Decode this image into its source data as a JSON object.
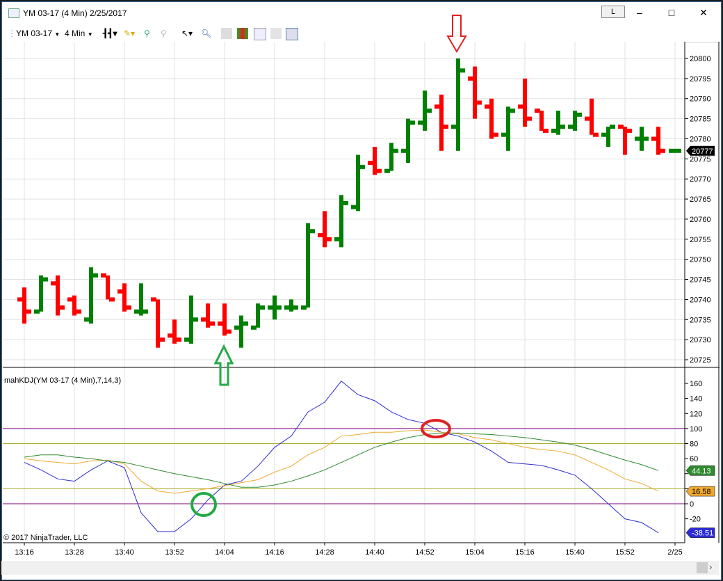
{
  "window": {
    "title": "YM 03-17 (4 Min)  2/25/2017",
    "l_button": "L",
    "minimize": "–",
    "maximize": "□",
    "close": "✕"
  },
  "toolbar": {
    "instrument": "YM 03-17",
    "interval": "4 Min",
    "icons": [
      "bar-type-icon",
      "pencil-draw-icon",
      "zoom-add-icon",
      "zoom-remove-icon",
      "pointer-icon",
      "zoom-magnifier-icon",
      "properties-icon",
      "data-series-icon",
      "indicators-icon",
      "strategy-icon",
      "template-icon"
    ]
  },
  "indicator_label": "mahKDJ(YM 03-17 (4 Min),7,14,3)",
  "copyright": "© 2017 NinjaTrader, LLC",
  "colors": {
    "up": "#008000",
    "down": "#ff0000",
    "k_line": "#2b2bd6",
    "d_line": "#f0a830",
    "j_line": "#2e8b2e",
    "level_100_0": "#800080",
    "level_80_20": "#a8b030",
    "last_price_bg": "#000000"
  },
  "chart_data": [
    {
      "type": "ohlc",
      "panel": "price",
      "x_tick_labels": [
        "13:16",
        "13:28",
        "13:40",
        "13:52",
        "14:04",
        "14:16",
        "14:28",
        "14:40",
        "14:52",
        "15:04",
        "15:16",
        "15:40",
        "15:52",
        "2/25"
      ],
      "y_ticks": [
        20725,
        20730,
        20735,
        20740,
        20745,
        20750,
        20755,
        20760,
        20765,
        20770,
        20775,
        20780,
        20785,
        20790,
        20795,
        20800
      ],
      "ylim": [
        20723,
        20804
      ],
      "last_price": "20777",
      "bars": [
        [
          20740,
          20743,
          20734,
          20737
        ],
        [
          20737,
          20746,
          20737,
          20745
        ],
        [
          20744,
          20746,
          20736,
          20738
        ],
        [
          20740,
          20741,
          20736,
          20737
        ],
        [
          20735,
          20748,
          20734,
          20746
        ],
        [
          20746,
          20746,
          20740,
          20740
        ],
        [
          20742,
          20744,
          20737,
          20738
        ],
        [
          20737,
          20744,
          20736,
          20737
        ],
        [
          20740,
          20740,
          20728,
          20730
        ],
        [
          20731,
          20735,
          20729,
          20730
        ],
        [
          20730,
          20741,
          20729,
          20735
        ],
        [
          20735,
          20739,
          20733,
          20734
        ],
        [
          20734,
          20739,
          20731,
          20732
        ],
        [
          20733,
          20736,
          20728,
          20734
        ],
        [
          20733,
          20739,
          20733,
          20738
        ],
        [
          20738,
          20741,
          20735,
          20738
        ],
        [
          20738,
          20740,
          20737,
          20738
        ],
        [
          20738,
          20759,
          20738,
          20757
        ],
        [
          20756,
          20762,
          20753,
          20755
        ],
        [
          20755,
          20766,
          20753,
          20764
        ],
        [
          20763,
          20776,
          20762,
          20773
        ],
        [
          20774,
          20778,
          20771,
          20772
        ],
        [
          20772,
          20779,
          20772,
          20777
        ],
        [
          20777,
          20785,
          20774,
          20784
        ],
        [
          20784,
          20792,
          20782,
          20787
        ],
        [
          20788,
          20791,
          20777,
          20783
        ],
        [
          20783,
          20800,
          20777,
          20797
        ],
        [
          20795,
          20798,
          20785,
          20789
        ],
        [
          20788,
          20790,
          20780,
          20781
        ],
        [
          20781,
          20788,
          20777,
          20787
        ],
        [
          20788,
          20795,
          20783,
          20785
        ],
        [
          20787,
          20787,
          20782,
          20782
        ],
        [
          20782,
          20787,
          20781,
          20783
        ],
        [
          20783,
          20787,
          20782,
          20786
        ],
        [
          20785,
          20790,
          20781,
          20781
        ],
        [
          20781,
          20783,
          20778,
          20783
        ],
        [
          20783,
          20783,
          20776,
          20782
        ],
        [
          20780,
          20783,
          20777,
          20780
        ],
        [
          20780,
          20783,
          20776,
          20777
        ],
        [
          20777,
          20777,
          20777,
          20777
        ]
      ]
    },
    {
      "type": "line",
      "panel": "indicator",
      "y_ticks": [
        -20,
        0,
        20,
        40,
        60,
        80,
        100,
        120,
        140,
        160
      ],
      "y_tick_labels": [
        "-20",
        "0",
        "",
        "",
        "60",
        "80",
        "100",
        "120",
        "140",
        "160"
      ],
      "ylim": [
        -45,
        175
      ],
      "levels": [
        100,
        80,
        20,
        0
      ],
      "series": [
        {
          "color_key": "k_line",
          "last": "-38.51",
          "values": [
            55,
            45,
            33,
            30,
            45,
            57,
            48,
            -12,
            -37,
            -37,
            -20,
            5,
            25,
            30,
            50,
            75,
            90,
            122,
            135,
            163,
            145,
            137,
            122,
            112,
            107,
            95,
            90,
            82,
            70,
            55,
            53,
            51,
            45,
            38,
            20,
            0,
            -20,
            -25,
            -38.51
          ]
        },
        {
          "color_key": "d_line",
          "last": "16.58",
          "values": [
            60,
            57,
            55,
            53,
            57,
            58,
            53,
            30,
            17,
            14,
            17,
            20,
            24,
            28,
            32,
            42,
            50,
            65,
            75,
            90,
            92,
            95,
            95,
            97,
            98,
            95,
            93,
            88,
            85,
            80,
            75,
            72,
            70,
            65,
            55,
            45,
            33,
            27,
            16.58
          ]
        },
        {
          "color_key": "j_line",
          "last": "44.13",
          "values": [
            62,
            65,
            65,
            62,
            60,
            57,
            55,
            50,
            45,
            40,
            36,
            32,
            27,
            22,
            22,
            25,
            30,
            37,
            45,
            55,
            65,
            75,
            82,
            88,
            92,
            94,
            94,
            93,
            92,
            90,
            88,
            85,
            82,
            78,
            72,
            65,
            58,
            52,
            44.13
          ]
        }
      ]
    }
  ]
}
